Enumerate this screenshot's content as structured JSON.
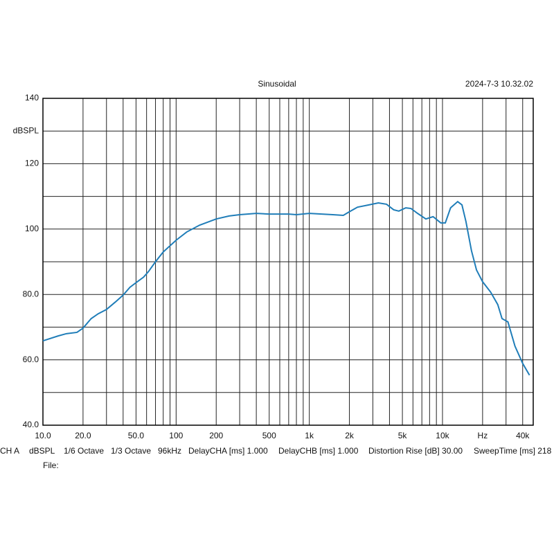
{
  "chart_data": {
    "type": "line",
    "title": "Sinusoidal",
    "timestamp": "2024-7-3 10.32.02",
    "log_x": true,
    "xlim": [
      10,
      48000
    ],
    "ylim": [
      40,
      140
    ],
    "xticks": [
      {
        "value": 10,
        "label": "10.0"
      },
      {
        "value": 20,
        "label": "20.0"
      },
      {
        "value": 50,
        "label": "50.0"
      },
      100,
      200,
      500,
      {
        "value": 1000,
        "label": "1k"
      },
      {
        "value": 2000,
        "label": "2k"
      },
      {
        "value": 5000,
        "label": "5k"
      },
      {
        "value": 10000,
        "label": "10k"
      },
      {
        "value": 20000,
        "label": "Hz"
      },
      {
        "value": 40000,
        "label": "40k"
      }
    ],
    "yticks": [
      {
        "value": 40,
        "label": "40.0"
      },
      {
        "value": 60,
        "label": "60.0"
      },
      {
        "value": 80,
        "label": "80.0"
      },
      100,
      120,
      {
        "value": 130,
        "label": "dBSPL"
      },
      140
    ],
    "xgrid": [
      20,
      30,
      40,
      50,
      60,
      70,
      80,
      90,
      100,
      200,
      300,
      400,
      500,
      600,
      700,
      800,
      900,
      1000,
      2000,
      3000,
      4000,
      5000,
      6000,
      7000,
      8000,
      9000,
      10000,
      20000,
      30000,
      40000
    ],
    "ygrid": [
      50,
      60,
      70,
      80,
      90,
      100,
      110,
      120,
      130
    ],
    "grid": true,
    "x": [
      10,
      13,
      15,
      18,
      20,
      23,
      26,
      30,
      35,
      40,
      45,
      50,
      57,
      62,
      70,
      80,
      100,
      120,
      150,
      200,
      250,
      300,
      400,
      500,
      700,
      800,
      1000,
      1500,
      1800,
      2000,
      2300,
      2800,
      3300,
      3800,
      4300,
      4700,
      5300,
      5800,
      6500,
      7500,
      8500,
      9700,
      10500,
      11500,
      13000,
      14000,
      15000,
      16500,
      18000,
      20000,
      23000,
      26000,
      28000,
      31000,
      35000,
      40000,
      45000
    ],
    "series": [
      {
        "color": "#1f7db8",
        "values": [
          65.8,
          67.3,
          68,
          68.4,
          69.7,
          72.6,
          74.1,
          75.4,
          77.7,
          79.8,
          82.2,
          83.6,
          85.3,
          87,
          90,
          93,
          96.6,
          99.1,
          101.2,
          103.1,
          104,
          104.4,
          104.8,
          104.6,
          104.6,
          104.4,
          104.8,
          104.4,
          104.2,
          105.3,
          106.7,
          107.4,
          108,
          107.6,
          105.9,
          105.5,
          106.5,
          106.3,
          104.8,
          103.1,
          103.8,
          101.9,
          101.9,
          106.5,
          108.4,
          107.4,
          102.3,
          93.4,
          87.5,
          83.9,
          80.7,
          76.9,
          72.6,
          71.6,
          64.2,
          58.9,
          55.3
        ]
      }
    ],
    "footer": [
      "CH A",
      "dBSPL",
      "1/6 Octave",
      "1/3 Octave",
      "96kHz",
      "DelayCHA [ms] 1.000",
      "DelayCHB [ms] 1.000",
      "Distortion Rise [dB] 30.00",
      "SweepTime [ms] 218"
    ],
    "file_label": "File:"
  }
}
